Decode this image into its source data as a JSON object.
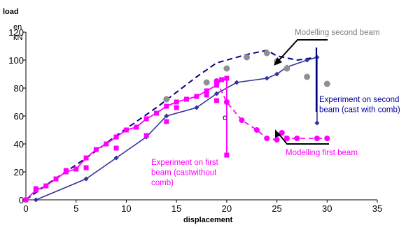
{
  "chart_data": {
    "type": "line",
    "title": "",
    "xlabel": "displacement",
    "ylabel": "load",
    "yunit": [
      "en",
      "kN"
    ],
    "xlim": [
      0,
      35
    ],
    "ylim": [
      0,
      120
    ],
    "xticks": [
      0,
      5,
      10,
      15,
      20,
      25,
      30,
      35
    ],
    "yticks": [
      0,
      20,
      40,
      60,
      80,
      100,
      120
    ],
    "grid": false,
    "legend": "none",
    "series": [
      {
        "name": "Modelling second beam",
        "style": "dashed-line",
        "color": "#000080",
        "x": [
          0,
          2.5,
          5,
          7,
          9,
          11,
          13,
          15,
          17,
          19,
          20,
          22,
          24,
          25,
          27,
          29
        ],
        "y": [
          0,
          13,
          25,
          35,
          46,
          56,
          66,
          77,
          88,
          98,
          100,
          104,
          107,
          103,
          100,
          102
        ]
      },
      {
        "name": "Experiment on second beam (cast with comb)",
        "style": "solid-line-diamond",
        "color": "#333399",
        "x": [
          1,
          6,
          9,
          12,
          14,
          17,
          19,
          21,
          24,
          25,
          26,
          28,
          29,
          29
        ],
        "y": [
          0,
          15,
          30,
          45,
          60,
          66,
          76,
          84,
          87,
          90,
          95,
          100,
          102,
          55
        ]
      },
      {
        "name": "Modelling first beam",
        "style": "dashed-line-circle",
        "color": "#ff00ff",
        "x": [
          19,
          20,
          21.5,
          23,
          24,
          25,
          25.5,
          26,
          27,
          29,
          30
        ],
        "y": [
          85,
          70,
          57,
          50,
          44,
          43,
          48,
          44,
          44,
          44,
          44
        ]
      },
      {
        "name": "Experiment on first beam (castwithout comb)",
        "style": "solid-line-square",
        "color": "#ff00ff",
        "x": [
          0,
          1,
          2,
          3,
          4,
          5,
          6,
          7,
          8,
          9,
          10,
          11,
          12,
          13,
          14,
          15,
          16,
          17,
          18,
          19,
          19.5,
          20,
          20
        ],
        "y": [
          0,
          7,
          10,
          15,
          20,
          22,
          30,
          36,
          40,
          45,
          50,
          52,
          58,
          62,
          67,
          70,
          72,
          74,
          78,
          82,
          86,
          87,
          32
        ]
      }
    ],
    "points_grey_model_second": {
      "color": "#909090",
      "x": [
        14,
        18,
        20,
        22,
        24,
        25,
        26,
        28,
        30
      ],
      "y": [
        72,
        84,
        94,
        102,
        105,
        99,
        94,
        88,
        83
      ]
    },
    "points_magenta_model_first": {
      "color": "#ff00ff",
      "x": [
        1,
        4,
        6,
        9,
        12,
        14,
        15,
        18,
        19
      ],
      "y": [
        8,
        21,
        23,
        37,
        46,
        56,
        66,
        75,
        71
      ]
    },
    "stray_mark": "c",
    "annotations": [
      {
        "key": "a1",
        "lines": [
          "Modelling second beam"
        ],
        "color": "#808080"
      },
      {
        "key": "a2",
        "lines": [
          "Experiment on second",
          "beam (cast with comb)"
        ],
        "color": "#000099"
      },
      {
        "key": "a3",
        "lines": [
          "Modelling first beam"
        ],
        "color": "#ff00ff"
      },
      {
        "key": "a4",
        "lines": [
          "Experiment on first",
          "beam (castwithout",
          "comb)"
        ],
        "color": "#ff00ff"
      }
    ]
  }
}
